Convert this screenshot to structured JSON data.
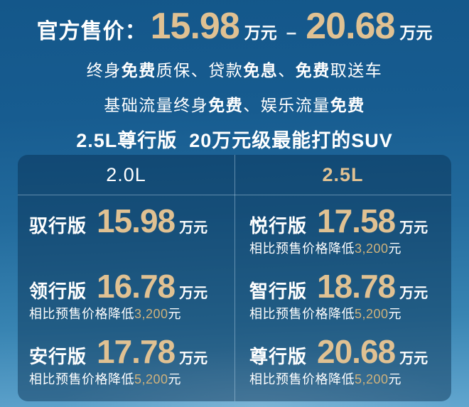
{
  "theme": {
    "gold": "#e0c192",
    "discount_gold": "#cfb27c",
    "white": "#ffffff",
    "bg_top": "#14578a",
    "bg_bottom": "#62a6cf",
    "panel": "rgba(6,44,78,0.45)"
  },
  "headline": {
    "label": "官方售价：",
    "price_low": "15.98",
    "unit_low": "万元",
    "dash": "–",
    "price_high": "20.68",
    "unit_high": "万元"
  },
  "benefits_line1": {
    "t1": "终身",
    "b1": "免费",
    "t2": "质保、贷款",
    "b2": "免息",
    "t3": "、",
    "b3": "免费",
    "t4": "取送车"
  },
  "benefits_line2": {
    "t1": "基础流量终身",
    "b1": "免费",
    "t2": "、娱乐流量",
    "b2": "免费"
  },
  "slogan": "2.5L尊行版  20万元级最能打的SUV",
  "table": {
    "columns": [
      {
        "header": "2.0L",
        "rows": [
          {
            "name": "驭行版",
            "price": "15.98",
            "unit": "万元"
          },
          {
            "name": "领行版",
            "price": "16.78",
            "unit": "万元",
            "discount_prefix": "相比预售价格降低",
            "discount_amount": "3,200",
            "discount_suffix": "元"
          },
          {
            "name": "安行版",
            "price": "17.78",
            "unit": "万元",
            "discount_prefix": "相比预售价格降低",
            "discount_amount": "5,200",
            "discount_suffix": "元"
          }
        ]
      },
      {
        "header": "2.5L",
        "rows": [
          {
            "name": "悦行版",
            "price": "17.58",
            "unit": "万元",
            "discount_prefix": "相比预售价格降低",
            "discount_amount": "3,200",
            "discount_suffix": "元"
          },
          {
            "name": "智行版",
            "price": "18.78",
            "unit": "万元",
            "discount_prefix": "相比预售价格降低",
            "discount_amount": "5,200",
            "discount_suffix": "元"
          },
          {
            "name": "尊行版",
            "price": "20.68",
            "unit": "万元",
            "discount_prefix": "相比预售价格降低",
            "discount_amount": "5,200",
            "discount_suffix": "元"
          }
        ]
      }
    ]
  }
}
